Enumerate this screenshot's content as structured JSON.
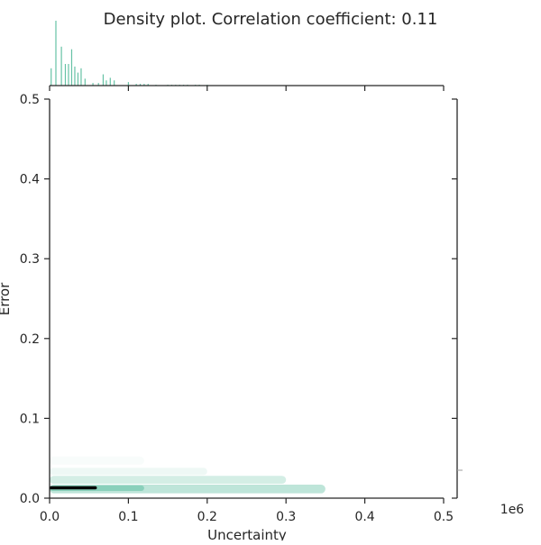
{
  "chart_data": {
    "type": "heatmap",
    "title": "Density plot. Correlation coefficient: 0.11",
    "xlabel": "Uncertainty",
    "ylabel": "Error",
    "x_offset_label": "1e6",
    "xlim": [
      0,
      0.5
    ],
    "ylim": [
      0,
      0.5
    ],
    "x_ticks": [
      0.0,
      0.1,
      0.2,
      0.3,
      0.4,
      0.5
    ],
    "y_ticks": [
      0.0,
      0.1,
      0.2,
      0.3,
      0.4,
      0.5
    ],
    "x_tick_labels": [
      "0.0",
      "0.1",
      "0.2",
      "0.3",
      "0.4",
      "0.5"
    ],
    "y_tick_labels": [
      "0.0",
      "0.1",
      "0.2",
      "0.3",
      "0.4",
      "0.5"
    ],
    "grid": false,
    "legend": "none",
    "colors": {
      "accent": "#66c2a5",
      "density_light": "#d6f0e6",
      "density_mid": "#9fd8c3",
      "density_dark": "#000000",
      "axis": "#262626"
    },
    "density_bands": [
      {
        "x0": 0.0,
        "x1": 0.12,
        "y0": 0.042,
        "y1": 0.052,
        "level": 0.05
      },
      {
        "x0": 0.0,
        "x1": 0.2,
        "y0": 0.029,
        "y1": 0.038,
        "level": 0.12
      },
      {
        "x0": 0.0,
        "x1": 0.3,
        "y0": 0.018,
        "y1": 0.028,
        "level": 0.3
      },
      {
        "x0": 0.0,
        "x1": 0.35,
        "y0": 0.006,
        "y1": 0.017,
        "level": 0.45
      },
      {
        "x0": 0.0,
        "x1": 0.12,
        "y0": 0.009,
        "y1": 0.016,
        "level": 0.75
      },
      {
        "x0": 0.0,
        "x1": 0.06,
        "y0": 0.011,
        "y1": 0.015,
        "level": 1.0
      }
    ],
    "marginal_x": {
      "x": [
        0.002,
        0.008,
        0.015,
        0.02,
        0.024,
        0.028,
        0.032,
        0.036,
        0.04,
        0.045,
        0.055,
        0.062,
        0.068,
        0.072,
        0.077,
        0.082,
        0.1,
        0.11,
        0.115,
        0.12,
        0.125,
        0.135,
        0.15,
        0.155,
        0.16,
        0.165,
        0.17,
        0.175,
        0.185,
        0.19,
        0.2
      ],
      "counts": [
        20,
        75,
        45,
        25,
        25,
        42,
        22,
        15,
        20,
        8,
        3,
        3,
        13,
        6,
        9,
        6,
        4,
        2,
        2,
        2,
        2,
        1,
        1,
        1,
        1,
        1,
        1,
        1,
        1,
        1,
        1
      ]
    },
    "marginal_y_outlier": {
      "y": 0.035,
      "value": 1
    }
  }
}
